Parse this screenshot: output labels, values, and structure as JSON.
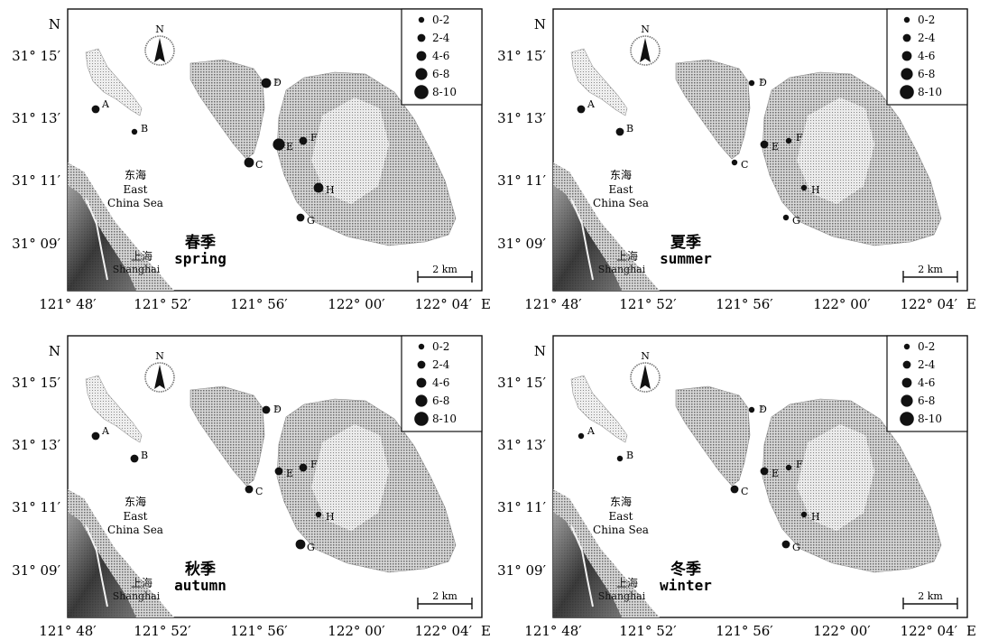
{
  "axis": {
    "north_letter": "N",
    "east_letter": "E",
    "lat_ticks": [
      "31° 15′",
      "31° 13′",
      "31° 11′",
      "31° 09′"
    ],
    "lon_ticks": [
      "121° 48′",
      "121° 52′",
      "121° 56′",
      "122° 00′",
      "122° 04′"
    ]
  },
  "legend": {
    "classes": [
      "0-2",
      "2-4",
      "4-6",
      "6-8",
      "8-10"
    ]
  },
  "compass": {
    "label": "N"
  },
  "scale_bar": {
    "label": "2 km"
  },
  "sea_label": {
    "zh": "东海",
    "en_line1": "East",
    "en_line2": "China Sea"
  },
  "city_label": {
    "zh": "上海",
    "en": "Shanghai"
  },
  "panels": [
    {
      "season_zh": "春季",
      "season_en": "spring",
      "stations": [
        {
          "id": "A",
          "class": 2
        },
        {
          "id": "B",
          "class": 1
        },
        {
          "id": "C",
          "class": 3
        },
        {
          "id": "D",
          "class": 3
        },
        {
          "id": "E",
          "class": 4
        },
        {
          "id": "F",
          "class": 2
        },
        {
          "id": "G",
          "class": 2
        },
        {
          "id": "H",
          "class": 3
        }
      ]
    },
    {
      "season_zh": "夏季",
      "season_en": "summer",
      "stations": [
        {
          "id": "A",
          "class": 2
        },
        {
          "id": "B",
          "class": 2
        },
        {
          "id": "C",
          "class": 1
        },
        {
          "id": "D",
          "class": 1
        },
        {
          "id": "E",
          "class": 2
        },
        {
          "id": "F",
          "class": 1
        },
        {
          "id": "G",
          "class": 1
        },
        {
          "id": "H",
          "class": 1
        }
      ]
    },
    {
      "season_zh": "秋季",
      "season_en": "autumn",
      "stations": [
        {
          "id": "A",
          "class": 2
        },
        {
          "id": "B",
          "class": 2
        },
        {
          "id": "C",
          "class": 2
        },
        {
          "id": "D",
          "class": 2
        },
        {
          "id": "E",
          "class": 2
        },
        {
          "id": "F",
          "class": 2
        },
        {
          "id": "G",
          "class": 3
        },
        {
          "id": "H",
          "class": 1
        }
      ]
    },
    {
      "season_zh": "冬季",
      "season_en": "winter",
      "stations": [
        {
          "id": "A",
          "class": 1
        },
        {
          "id": "B",
          "class": 1
        },
        {
          "id": "C",
          "class": 2
        },
        {
          "id": "D",
          "class": 1
        },
        {
          "id": "E",
          "class": 2
        },
        {
          "id": "F",
          "class": 1
        },
        {
          "id": "G",
          "class": 2
        },
        {
          "id": "H",
          "class": 1
        }
      ]
    }
  ],
  "colors": {
    "ink": "#111111",
    "land_dark": "#2a2a2a",
    "land_mid": "#8d8d8d",
    "land_light": "#c9c9c9"
  }
}
